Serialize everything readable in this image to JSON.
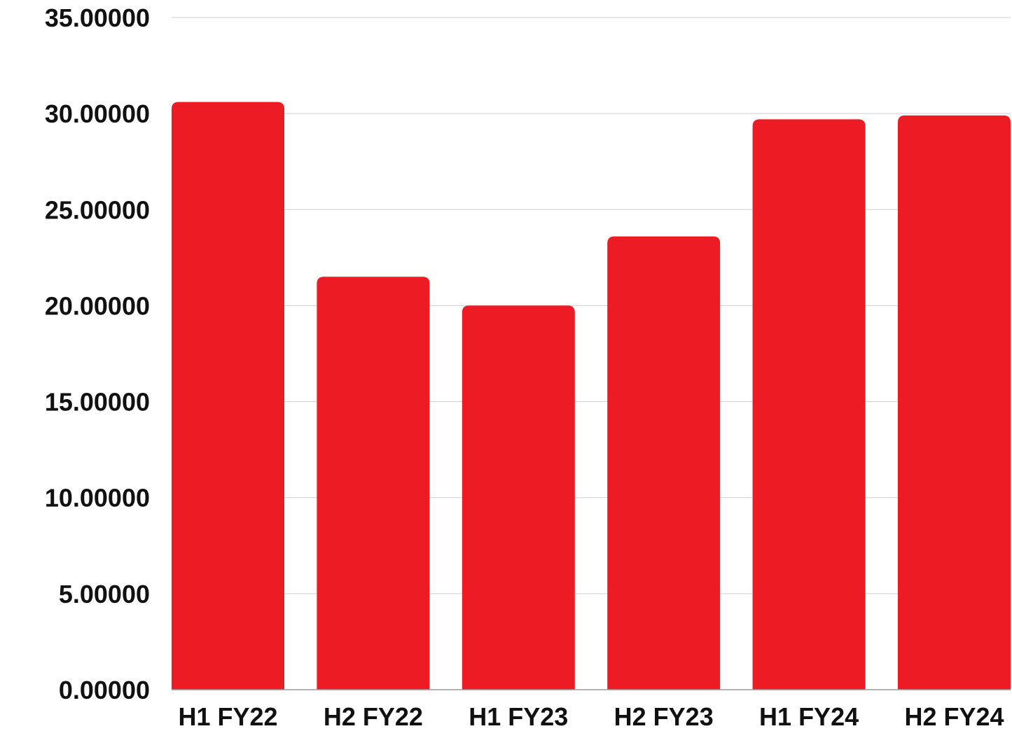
{
  "chart_data": {
    "type": "bar",
    "categories": [
      "H1 FY22",
      "H2 FY22",
      "H1 FY23",
      "H2 FY23",
      "H1 FY24",
      "H2 FY24"
    ],
    "series": [
      {
        "values": [
          30.6,
          21.5,
          20.0,
          23.6,
          29.7,
          29.9
        ],
        "color": "#ED1C24"
      }
    ],
    "ylim": [
      0,
      35
    ],
    "yticks": [
      0,
      5,
      10,
      15,
      20,
      25,
      30,
      35
    ],
    "ytick_labels": [
      "0.00000",
      "5.00000",
      "10.00000",
      "15.00000",
      "20.00000",
      "25.00000",
      "30.00000",
      "35.00000"
    ],
    "grid": true,
    "legend": "none"
  }
}
